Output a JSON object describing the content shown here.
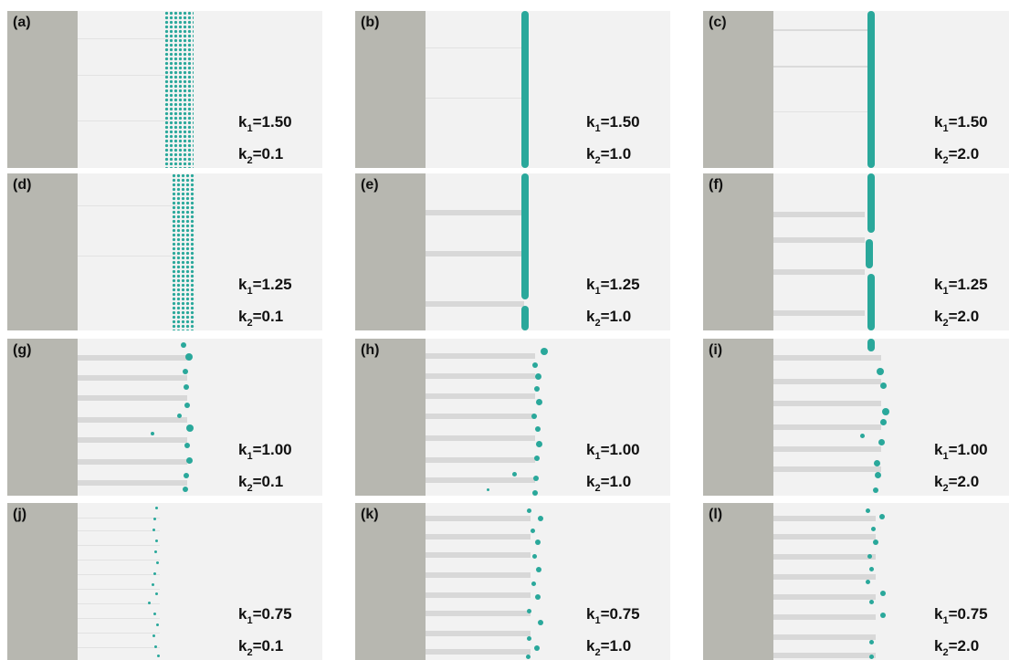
{
  "colors": {
    "wall": "#b7b7b0",
    "background": "#f2f2f2",
    "particles": "#2aa89b"
  },
  "panels": [
    {
      "label": "(a)",
      "k1_prefix": "k",
      "k1_sub": "1",
      "k1_value": "=1.50",
      "k2_prefix": "k",
      "k2_sub": "2",
      "k2_value": "=0.1"
    },
    {
      "label": "(b)",
      "k1_prefix": "k",
      "k1_sub": "1",
      "k1_value": "=1.50",
      "k2_prefix": "k",
      "k2_sub": "2",
      "k2_value": "=1.0"
    },
    {
      "label": "(c)",
      "k1_prefix": "k",
      "k1_sub": "1",
      "k1_value": "=1.50",
      "k2_prefix": "k",
      "k2_sub": "2",
      "k2_value": "=2.0"
    },
    {
      "label": "(d)",
      "k1_prefix": "k",
      "k1_sub": "1",
      "k1_value": "=1.25",
      "k2_prefix": "k",
      "k2_sub": "2",
      "k2_value": "=0.1"
    },
    {
      "label": "(e)",
      "k1_prefix": "k",
      "k1_sub": "1",
      "k1_value": "=1.25",
      "k2_prefix": "k",
      "k2_sub": "2",
      "k2_value": "=1.0"
    },
    {
      "label": "(f)",
      "k1_prefix": "k",
      "k1_sub": "1",
      "k1_value": "=1.25",
      "k2_prefix": "k",
      "k2_sub": "2",
      "k2_value": "=2.0"
    },
    {
      "label": "(g)",
      "k1_prefix": "k",
      "k1_sub": "1",
      "k1_value": "=1.00",
      "k2_prefix": "k",
      "k2_sub": "2",
      "k2_value": "=0.1"
    },
    {
      "label": "(h)",
      "k1_prefix": "k",
      "k1_sub": "1",
      "k1_value": "=1.00",
      "k2_prefix": "k",
      "k2_sub": "2",
      "k2_value": "=1.0"
    },
    {
      "label": "(i)",
      "k1_prefix": "k",
      "k1_sub": "1",
      "k1_value": "=1.00",
      "k2_prefix": "k",
      "k2_sub": "2",
      "k2_value": "=2.0"
    },
    {
      "label": "(j)",
      "k1_prefix": "k",
      "k1_sub": "1",
      "k1_value": "=0.75",
      "k2_prefix": "k",
      "k2_sub": "2",
      "k2_value": "=0.1"
    },
    {
      "label": "(k)",
      "k1_prefix": "k",
      "k1_sub": "1",
      "k1_value": "=0.75",
      "k2_prefix": "k",
      "k2_sub": "2",
      "k2_value": "=1.0"
    },
    {
      "label": "(l)",
      "k1_prefix": "k",
      "k1_sub": "1",
      "k1_value": "=0.75",
      "k2_prefix": "k",
      "k2_sub": "2",
      "k2_value": "=2.0"
    }
  ]
}
